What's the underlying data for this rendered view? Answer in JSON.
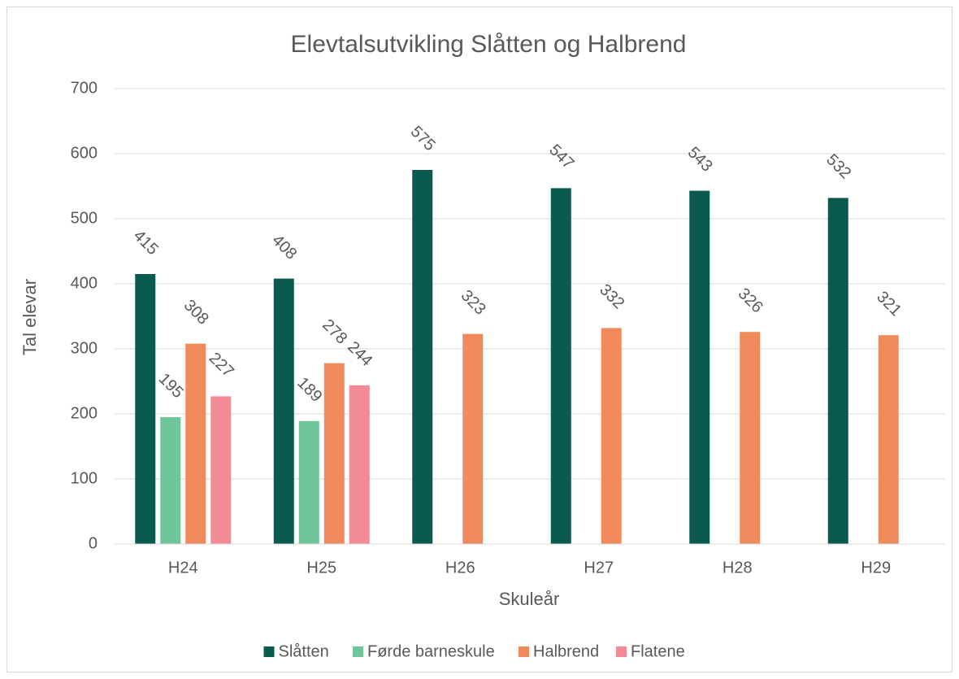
{
  "chart_data": {
    "type": "bar",
    "title": "Elevtalsutvikling Slåtten og Halbrend",
    "x_label": "Skuleår",
    "y_label": "Tal elevar",
    "categories": [
      "H24",
      "H25",
      "H26",
      "H27",
      "H28",
      "H29"
    ],
    "series": [
      {
        "name": "Slåtten",
        "color": "#0b5a4f",
        "values": [
          415,
          408,
          575,
          547,
          543,
          532
        ]
      },
      {
        "name": "Førde barneskule",
        "color": "#6fc699",
        "values": [
          195,
          189,
          null,
          null,
          null,
          null
        ]
      },
      {
        "name": "Halbrend",
        "color": "#f08a5d",
        "values": [
          308,
          278,
          323,
          332,
          326,
          321
        ]
      },
      {
        "name": "Flatene",
        "color": "#f28b95",
        "values": [
          227,
          244,
          null,
          null,
          null,
          null
        ]
      }
    ],
    "ylim": [
      0,
      700
    ],
    "yticks": [
      0,
      100,
      200,
      300,
      400,
      500,
      600,
      700
    ],
    "grid": true,
    "legend": "bottom"
  }
}
